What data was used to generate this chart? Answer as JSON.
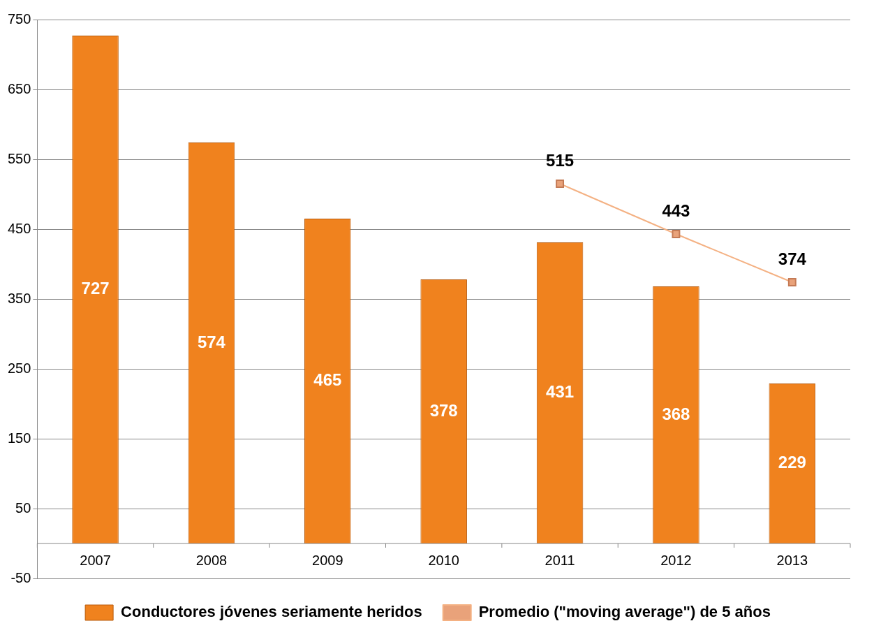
{
  "chart_data": {
    "type": "bar",
    "categories": [
      "2007",
      "2008",
      "2009",
      "2010",
      "2011",
      "2012",
      "2013"
    ],
    "series": [
      {
        "name": "Conductores jóvenes seriamente heridos",
        "color": "#f0821e",
        "values": [
          727,
          574,
          465,
          378,
          431,
          368,
          229
        ]
      },
      {
        "name": "Promedio (\"moving average\") de 5 años",
        "type": "line",
        "color": "#f4b183",
        "marker": "square",
        "values": [
          null,
          null,
          null,
          null,
          515,
          443,
          374
        ]
      }
    ],
    "ylim": [
      -50,
      750
    ],
    "yticks": [
      -50,
      50,
      150,
      250,
      350,
      450,
      550,
      650,
      750
    ],
    "grid": "y",
    "legend": "bottom",
    "data_labels": true
  }
}
